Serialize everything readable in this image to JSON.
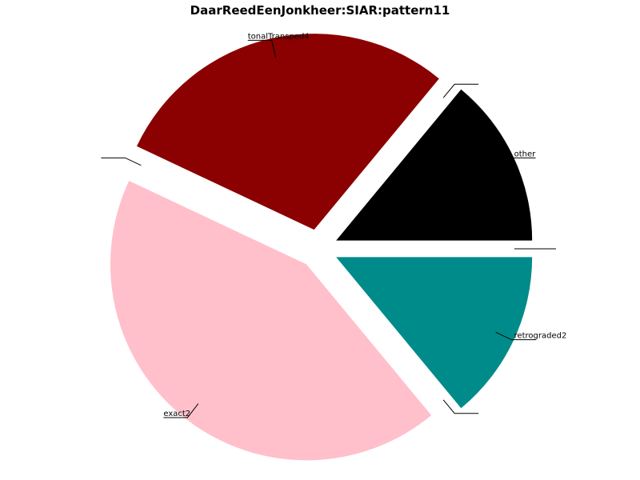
{
  "chart_data": {
    "type": "pie",
    "title": "DaarReedEenJonkheer:SIAR:pattern11",
    "legend": "none",
    "slices": [
      {
        "label": "other",
        "value": 14,
        "color": "#000000"
      },
      {
        "label": "",
        "value": 0,
        "color": "#ffffff"
      },
      {
        "label": "tonalTransped4",
        "value": 29,
        "color": "#8b0000"
      },
      {
        "label": "",
        "value": 0,
        "color": "#ffffff"
      },
      {
        "label": "exact2",
        "value": 43,
        "color": "#ffc0cb"
      },
      {
        "label": "",
        "value": 0,
        "color": "#ffffff"
      },
      {
        "label": "retrograded2",
        "value": 14,
        "color": "#008b8b"
      },
      {
        "label": "",
        "value": 0,
        "color": "#ffffff"
      }
    ]
  }
}
